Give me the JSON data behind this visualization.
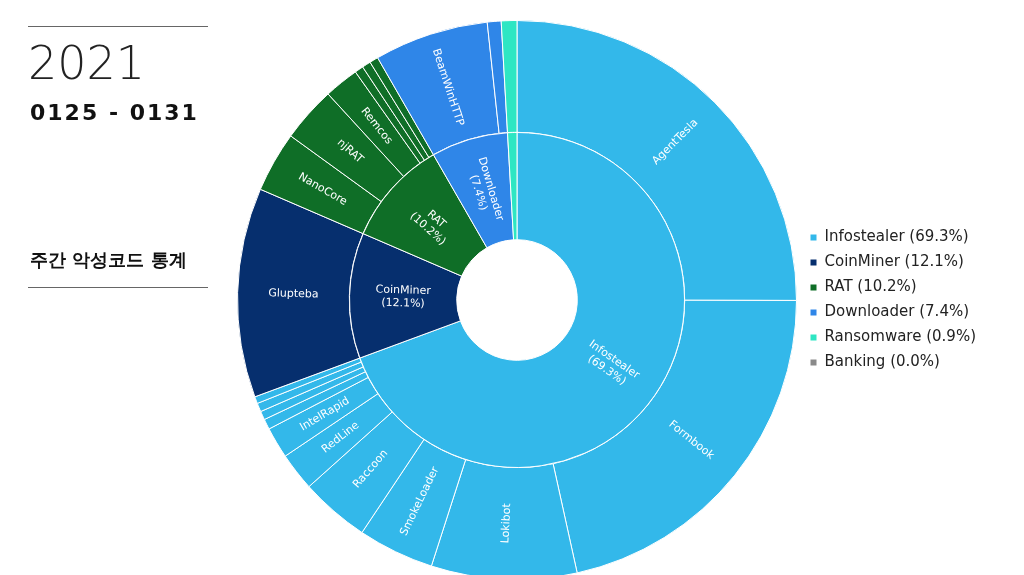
{
  "chart_data": [
    {
      "type": "donut",
      "title": "2021",
      "subtitle": "0125 - 0131",
      "annotations": [
        "주간 악성코드 통계"
      ],
      "categories": [
        "Infostealer (69.3%)",
        "CoinMiner (12.1%)",
        "RAT (10.2%)",
        "Downloader (7.4%)",
        "Ransomware (0.9%)",
        "Banking (0.0%)"
      ],
      "values": [
        69.3,
        12.1,
        10.2,
        7.4,
        0.9,
        0.0
      ],
      "colors": [
        "#33b8ea",
        "#062f6e",
        "#0f6e27",
        "#2f86e8",
        "#2ee6c3",
        "#8a8a8a"
      ],
      "legend": "right"
    },
    {
      "type": "donut",
      "categories": [
        "AgentTesla",
        "Formbook",
        "Lokibot",
        "SmokeLoader",
        "Raccoon",
        "RedLine",
        "IntelRapid",
        null,
        null,
        null,
        null,
        "Glupteba",
        "NanoCore",
        "njRAT",
        "Remcos",
        null,
        null,
        null,
        "BeamWinHTTP",
        null,
        null
      ],
      "values": [
        25.0,
        21.5,
        8.4,
        4.4,
        4.0,
        2.2,
        1.8,
        0.6,
        0.5,
        0.5,
        0.4,
        12.1,
        3.5,
        3.2,
        2.0,
        0.5,
        0.5,
        0.5,
        6.6,
        0.8,
        0.9
      ],
      "colors": [
        "#33b8ea",
        "#33b8ea",
        "#33b8ea",
        "#33b8ea",
        "#33b8ea",
        "#33b8ea",
        "#33b8ea",
        "#33b8ea",
        "#33b8ea",
        "#33b8ea",
        "#33b8ea",
        "#062f6e",
        "#0f6e27",
        "#0f6e27",
        "#0f6e27",
        "#0f6e27",
        "#0f6e27",
        "#0f6e27",
        "#2f86e8",
        "#2f86e8",
        "#2ee6c3"
      ]
    }
  ]
}
